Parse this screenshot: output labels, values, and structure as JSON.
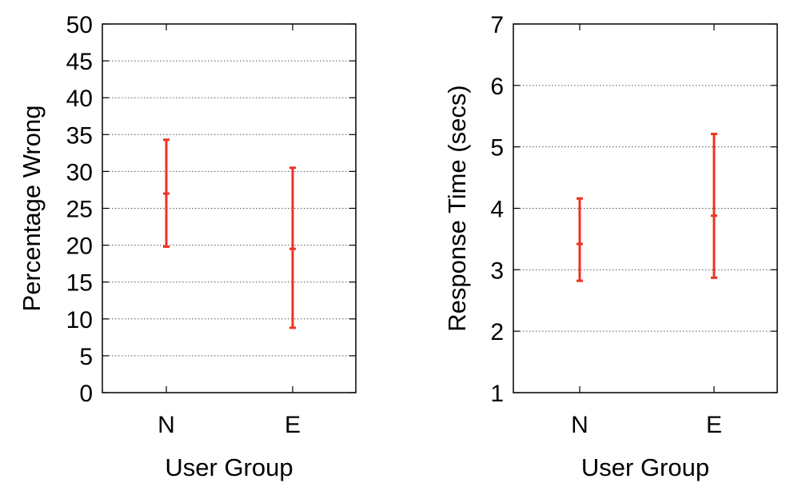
{
  "chart_data": [
    {
      "type": "errorbar",
      "title": "",
      "xlabel": "User Group",
      "ylabel": "Percentage Wrong",
      "categories": [
        "N",
        "E"
      ],
      "ylim": [
        0,
        50
      ],
      "yticks": [
        0,
        5,
        10,
        15,
        20,
        25,
        30,
        35,
        40,
        45,
        50
      ],
      "grid": "horizontal",
      "color": "#ee3322",
      "series": [
        {
          "values": [
            {
              "x": "N",
              "mean": 27.0,
              "low": 19.8,
              "high": 34.3
            },
            {
              "x": "E",
              "mean": 19.5,
              "low": 8.8,
              "high": 30.5
            }
          ]
        }
      ]
    },
    {
      "type": "errorbar",
      "title": "",
      "xlabel": "User Group",
      "ylabel": "Response Time (secs)",
      "categories": [
        "N",
        "E"
      ],
      "ylim": [
        1,
        7
      ],
      "yticks": [
        1,
        2,
        3,
        4,
        5,
        6,
        7
      ],
      "grid": "horizontal",
      "color": "#ee3322",
      "series": [
        {
          "values": [
            {
              "x": "N",
              "mean": 3.42,
              "low": 2.82,
              "high": 4.16
            },
            {
              "x": "E",
              "mean": 3.88,
              "low": 2.87,
              "high": 5.21
            }
          ]
        }
      ]
    }
  ]
}
